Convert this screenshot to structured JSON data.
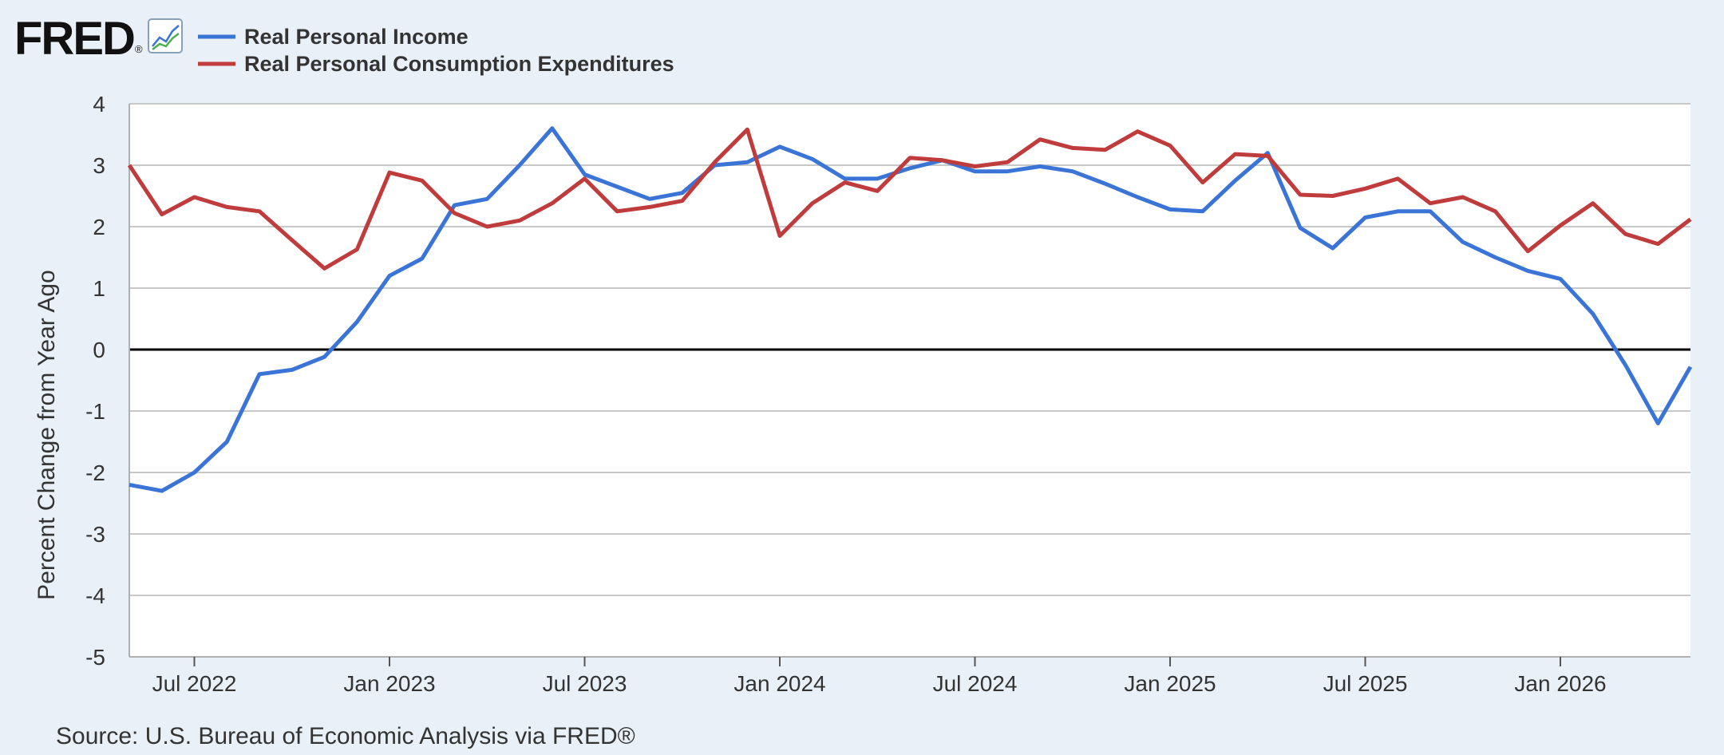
{
  "header": {
    "logo_text": "FRED",
    "logo_mark": "®",
    "chart_icon": "line-chart-icon"
  },
  "source_text": "Source: U.S. Bureau of Economic Analysis via FRED®",
  "colors": {
    "background": "#eaf0f8",
    "plot_background": "#ffffff",
    "grid": "#c8c8c8",
    "zero_line": "#000000",
    "income": "#3a74d6",
    "consumption": "#c03b3b"
  },
  "chart_data": {
    "type": "line",
    "title": "",
    "xlabel": "",
    "ylabel": "Percent Change from Year Ago",
    "ylim": [
      -5,
      4
    ],
    "yticks": [
      4,
      3,
      2,
      1,
      0,
      -1,
      -2,
      -3,
      -4,
      -5
    ],
    "xlim": [
      "2022-05",
      "2026-05"
    ],
    "xticks": [
      {
        "label": "Jul 2022",
        "month": "2022-07"
      },
      {
        "label": "Jan 2023",
        "month": "2023-01"
      },
      {
        "label": "Jul 2023",
        "month": "2023-07"
      },
      {
        "label": "Jan 2024",
        "month": "2024-01"
      },
      {
        "label": "Jul 2024",
        "month": "2024-07"
      },
      {
        "label": "Jan 2025",
        "month": "2025-01"
      },
      {
        "label": "Jul 2025",
        "month": "2025-07"
      },
      {
        "label": "Jan 2026",
        "month": "2026-01"
      }
    ],
    "grid": true,
    "legend_position": "top-left",
    "x": [
      "2022-05",
      "2022-06",
      "2022-07",
      "2022-08",
      "2022-09",
      "2022-10",
      "2022-11",
      "2022-12",
      "2023-01",
      "2023-02",
      "2023-03",
      "2023-04",
      "2023-05",
      "2023-06",
      "2023-07",
      "2023-08",
      "2023-09",
      "2023-10",
      "2023-11",
      "2023-12",
      "2024-01",
      "2024-02",
      "2024-03",
      "2024-04",
      "2024-05",
      "2024-06",
      "2024-07",
      "2024-08",
      "2024-09",
      "2024-10",
      "2024-11",
      "2024-12",
      "2025-01",
      "2025-02",
      "2025-03",
      "2025-04",
      "2025-05",
      "2025-06",
      "2025-07",
      "2025-08",
      "2025-09",
      "2025-10",
      "2025-11",
      "2025-12",
      "2026-01",
      "2026-02",
      "2026-03",
      "2026-04",
      "2026-05"
    ],
    "series": [
      {
        "name": "Real Personal Income",
        "color": "#3a74d6",
        "values": [
          -2.2,
          -2.3,
          -2.0,
          -1.5,
          -0.4,
          -0.33,
          -0.12,
          0.45,
          1.2,
          1.48,
          2.35,
          2.45,
          3.0,
          3.6,
          2.85,
          2.65,
          2.45,
          2.55,
          3.0,
          3.05,
          3.3,
          3.1,
          2.78,
          2.78,
          2.95,
          3.08,
          2.9,
          2.9,
          2.98,
          2.9,
          2.7,
          2.48,
          2.28,
          2.25,
          2.75,
          3.2,
          1.98,
          1.65,
          2.15,
          2.25,
          2.25,
          1.75,
          1.5,
          1.28,
          1.15,
          0.58,
          -0.25,
          -1.2,
          -0.28
        ]
      },
      {
        "name": "Real Personal Consumption Expenditures",
        "color": "#c03b3b",
        "values": [
          3.0,
          2.2,
          2.48,
          2.32,
          2.25,
          1.78,
          1.32,
          1.63,
          2.88,
          2.75,
          2.22,
          2.0,
          2.1,
          2.38,
          2.78,
          2.25,
          2.32,
          2.42,
          3.05,
          3.58,
          1.85,
          2.38,
          2.72,
          2.58,
          3.12,
          3.08,
          2.98,
          3.05,
          3.42,
          3.28,
          3.25,
          3.55,
          3.32,
          2.72,
          3.18,
          3.15,
          2.52,
          2.5,
          2.62,
          2.78,
          2.38,
          2.48,
          2.25,
          1.6,
          2.02,
          2.38,
          1.88,
          1.72,
          2.12
        ]
      }
    ]
  }
}
